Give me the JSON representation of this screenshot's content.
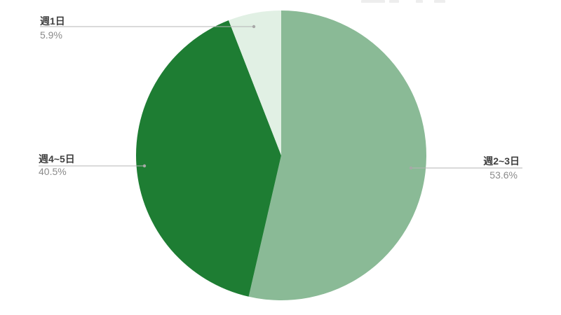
{
  "chart_data": {
    "type": "pie",
    "title": "",
    "legend": "none",
    "start_angle": "12-o-clock",
    "direction": "clockwise",
    "unit": "%",
    "background": "#ffffff",
    "leader_line_color": "#b4b4b4",
    "label_name_color": "#3f3f3f",
    "label_pct_color": "#8a8a8a",
    "series": [
      {
        "label": "週2~3日",
        "value_pct": 53.6,
        "display_pct": "53.6%",
        "color": "#8aba96"
      },
      {
        "label": "週4~5日",
        "value_pct": 40.5,
        "display_pct": "40.5%",
        "color": "#1e7d33"
      },
      {
        "label": "週1日",
        "value_pct": 5.9,
        "display_pct": "5.9%",
        "color": "#e1f0e4"
      }
    ]
  }
}
